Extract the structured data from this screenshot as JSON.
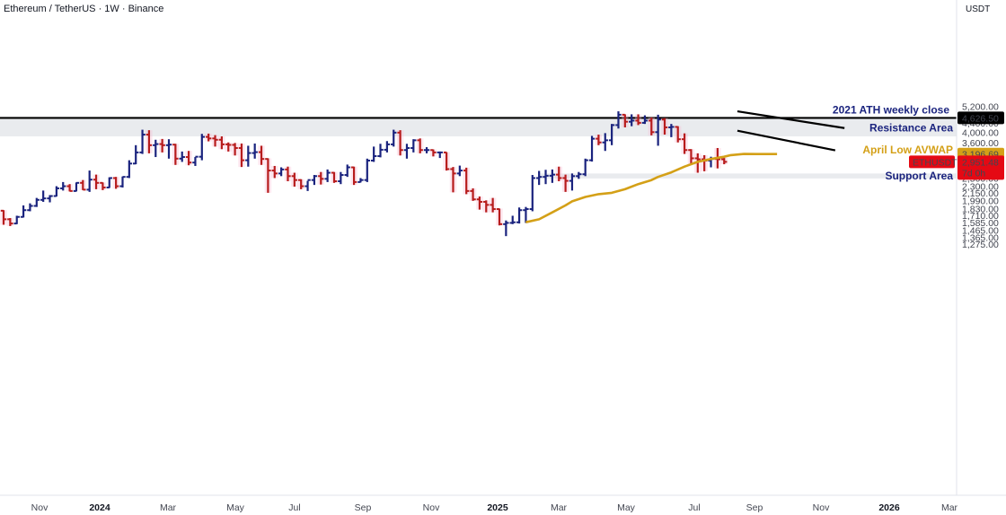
{
  "header": {
    "title": "Ethereum / TetherUS · 1W · Binance",
    "unit": "USDT"
  },
  "colors": {
    "bull": "#1a237e",
    "bear": "#b71c1c",
    "bear_bg": "#f8bbd0",
    "avwap": "#d4a017",
    "zone": "#e9ebee",
    "ath_line": "#000000",
    "label_text": "#1a237e",
    "last_price_bg": "#e50914"
  },
  "annotations": {
    "ath": "2021 ATH weekly close",
    "resistance": "Resistance Area",
    "avwap": "April Low AVWAP",
    "support": "Support Area"
  },
  "price_labels": {
    "ath": "4,626.50",
    "avwap": "3,196.69",
    "symbol": "ETHUSDT",
    "last": "2,951.48",
    "countdown": "7d 0h"
  },
  "chart_data": {
    "type": "ohlc",
    "title": "Ethereum / TetherUS · 1W · Binance",
    "y_scale": "log",
    "ylim": [
      1220,
      5500
    ],
    "y_ticks": [
      "5,200.00",
      "4,800.00",
      "4,400.00",
      "4,000.00",
      "3,600.00",
      "3,200.00",
      "2,700.00",
      "2,500.00",
      "2,300.00",
      "2,150.00",
      "1,990.00",
      "1,830.00",
      "1,710.00",
      "1,585.00",
      "1,465.00",
      "1,365.00",
      "1,275.00"
    ],
    "x_ticks": [
      {
        "label": "Nov",
        "bold": false
      },
      {
        "label": "2024",
        "bold": true
      },
      {
        "label": "Mar",
        "bold": false
      },
      {
        "label": "May",
        "bold": false
      },
      {
        "label": "Jul",
        "bold": false
      },
      {
        "label": "Sep",
        "bold": false
      },
      {
        "label": "Nov",
        "bold": false
      },
      {
        "label": "2025",
        "bold": true
      },
      {
        "label": "Mar",
        "bold": false
      },
      {
        "label": "May",
        "bold": false
      },
      {
        "label": "Jul",
        "bold": false
      },
      {
        "label": "Sep",
        "bold": false
      },
      {
        "label": "Nov",
        "bold": false
      },
      {
        "label": "2026",
        "bold": true
      },
      {
        "label": "Mar",
        "bold": false
      }
    ],
    "levels": {
      "ath_close": 4626.5,
      "avwap_last": 3196.69,
      "last_close": 2951.48
    },
    "zones": {
      "resistance": [
        3830,
        4626.5
      ],
      "support": [
        2490,
        2620
      ]
    },
    "series": [
      {
        "values": [
          [
            1790,
            1800,
            1550,
            1640
          ],
          [
            1640,
            1660,
            1530,
            1570
          ],
          [
            1570,
            1700,
            1560,
            1680
          ],
          [
            1680,
            1890,
            1670,
            1800
          ],
          [
            1800,
            1930,
            1780,
            1880
          ],
          [
            1880,
            2040,
            1860,
            2000
          ],
          [
            2000,
            2200,
            1960,
            2030
          ],
          [
            2030,
            2100,
            1950,
            2080
          ],
          [
            2080,
            2300,
            2070,
            2250
          ],
          [
            2250,
            2400,
            2200,
            2300
          ],
          [
            2300,
            2350,
            2180,
            2190
          ],
          [
            2190,
            2390,
            2180,
            2380
          ],
          [
            2380,
            2450,
            2210,
            2220
          ],
          [
            2220,
            2700,
            2170,
            2460
          ],
          [
            2460,
            2590,
            2230,
            2380
          ],
          [
            2380,
            2390,
            2210,
            2270
          ],
          [
            2270,
            2520,
            2260,
            2500
          ],
          [
            2500,
            2530,
            2240,
            2300
          ],
          [
            2300,
            2540,
            2270,
            2530
          ],
          [
            2530,
            3000,
            2500,
            2900
          ],
          [
            2900,
            3500,
            2880,
            3250
          ],
          [
            3250,
            4100,
            3200,
            3900
          ],
          [
            3900,
            4080,
            3220,
            3500
          ],
          [
            3500,
            3700,
            3100,
            3540
          ],
          [
            3540,
            3730,
            3250,
            3500
          ],
          [
            3500,
            3720,
            3050,
            3520
          ],
          [
            3520,
            3550,
            2860,
            3050
          ],
          [
            3050,
            3280,
            2950,
            3100
          ],
          [
            3100,
            3300,
            2850,
            2930
          ],
          [
            2930,
            3100,
            2830,
            3110
          ],
          [
            3110,
            3930,
            3000,
            3810
          ],
          [
            3810,
            3940,
            3640,
            3750
          ],
          [
            3750,
            3880,
            3450,
            3700
          ],
          [
            3700,
            3830,
            3360,
            3530
          ],
          [
            3530,
            3600,
            3280,
            3510
          ],
          [
            3510,
            3580,
            3150,
            3400
          ],
          [
            3400,
            3560,
            2800,
            3000
          ],
          [
            3000,
            3480,
            2810,
            3230
          ],
          [
            3230,
            3560,
            3050,
            3260
          ],
          [
            3260,
            3480,
            2860,
            3040
          ],
          [
            3040,
            3060,
            2150,
            2700
          ],
          [
            2700,
            2830,
            2500,
            2620
          ],
          [
            2620,
            2790,
            2550,
            2730
          ],
          [
            2730,
            2810,
            2420,
            2550
          ],
          [
            2550,
            2640,
            2290,
            2450
          ],
          [
            2450,
            2470,
            2230,
            2300
          ],
          [
            2300,
            2430,
            2190,
            2450
          ],
          [
            2450,
            2580,
            2330,
            2550
          ],
          [
            2550,
            2660,
            2340,
            2480
          ],
          [
            2480,
            2730,
            2400,
            2640
          ],
          [
            2640,
            2660,
            2380,
            2420
          ],
          [
            2420,
            2660,
            2350,
            2580
          ],
          [
            2580,
            2870,
            2530,
            2790
          ],
          [
            2790,
            2810,
            2330,
            2400
          ],
          [
            2400,
            2500,
            2390,
            2450
          ],
          [
            2450,
            3050,
            2400,
            2990
          ],
          [
            2990,
            3450,
            2950,
            3130
          ],
          [
            3130,
            3550,
            3090,
            3340
          ],
          [
            3340,
            3650,
            3250,
            3530
          ],
          [
            3530,
            4100,
            3450,
            3980
          ],
          [
            3980,
            4080,
            3150,
            3330
          ],
          [
            3330,
            3550,
            3050,
            3400
          ],
          [
            3400,
            3720,
            3250,
            3680
          ],
          [
            3680,
            3750,
            3220,
            3330
          ],
          [
            3330,
            3430,
            3220,
            3330
          ],
          [
            3330,
            3350,
            3120,
            3250
          ],
          [
            3250,
            3280,
            3070,
            3250
          ],
          [
            3250,
            3260,
            2700,
            2740
          ],
          [
            2740,
            2800,
            2160,
            2620
          ],
          [
            2620,
            2840,
            2550,
            2700
          ],
          [
            2700,
            2780,
            2120,
            2190
          ],
          [
            2190,
            2250,
            1980,
            2010
          ],
          [
            2010,
            2070,
            1810,
            1960
          ],
          [
            1960,
            1990,
            1760,
            1900
          ],
          [
            1900,
            2040,
            1760,
            1820
          ],
          [
            1820,
            1830,
            1540,
            1560
          ],
          [
            1560,
            1620,
            1380,
            1580
          ],
          [
            1580,
            1700,
            1560,
            1590
          ],
          [
            1590,
            1850,
            1570,
            1800
          ],
          [
            1800,
            1860,
            1580,
            1820
          ],
          [
            1820,
            2580,
            1780,
            2500
          ],
          [
            2500,
            2690,
            2330,
            2530
          ],
          [
            2530,
            2720,
            2350,
            2560
          ],
          [
            2560,
            2730,
            2380,
            2590
          ],
          [
            2590,
            2810,
            2420,
            2500
          ],
          [
            2500,
            2590,
            2170,
            2430
          ],
          [
            2430,
            2620,
            2200,
            2550
          ],
          [
            2550,
            2660,
            2480,
            2600
          ],
          [
            2600,
            3050,
            2550,
            3000
          ],
          [
            3000,
            3850,
            2960,
            3740
          ],
          [
            3740,
            3900,
            3500,
            3600
          ],
          [
            3600,
            3960,
            3300,
            3680
          ],
          [
            3680,
            4350,
            3500,
            4300
          ],
          [
            4300,
            4950,
            4150,
            4780
          ],
          [
            4780,
            4800,
            4200,
            4450
          ],
          [
            4450,
            4800,
            4250,
            4500
          ],
          [
            4500,
            4800,
            4300,
            4400
          ],
          [
            4400,
            4750,
            4350,
            4500
          ],
          [
            4500,
            4650,
            3870,
            4000
          ],
          [
            4000,
            4780,
            3480,
            4550
          ],
          [
            4550,
            4620,
            3900,
            4200
          ],
          [
            4200,
            4350,
            3800,
            4220
          ],
          [
            4220,
            4250,
            3600,
            3720
          ],
          [
            3720,
            3950,
            3200,
            3330
          ],
          [
            3330,
            3360,
            2880,
            3060
          ],
          [
            3060,
            3220,
            2640,
            3030
          ],
          [
            3030,
            3160,
            2680,
            2990
          ],
          [
            2990,
            3110,
            2790,
            3040
          ],
          [
            3040,
            3400,
            2760,
            3030
          ],
          [
            3030,
            3070,
            2880,
            2951.48
          ]
        ]
      },
      {
        "name": "April Low AVWAP",
        "values": [
          [
            79,
            1590
          ],
          [
            81,
            1640
          ],
          [
            83,
            1760
          ],
          [
            85,
            1890
          ],
          [
            86,
            1970
          ],
          [
            88,
            2060
          ],
          [
            90,
            2120
          ],
          [
            92,
            2150
          ],
          [
            94,
            2230
          ],
          [
            96,
            2350
          ],
          [
            98,
            2450
          ],
          [
            99,
            2530
          ],
          [
            101,
            2650
          ],
          [
            103,
            2810
          ],
          [
            105,
            2950
          ],
          [
            107,
            3040
          ],
          [
            109,
            3110
          ],
          [
            110,
            3160
          ],
          [
            112,
            3200
          ],
          [
            114,
            3196
          ],
          [
            117,
            3196
          ]
        ]
      }
    ]
  }
}
